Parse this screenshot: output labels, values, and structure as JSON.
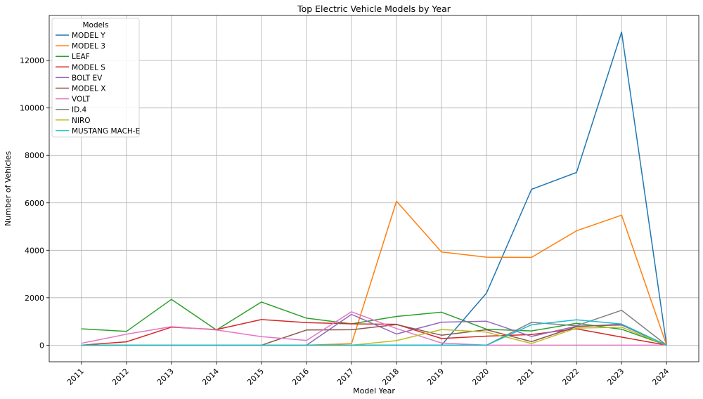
{
  "chart_data": {
    "type": "line",
    "title": "Top Electric Vehicle Models by Year",
    "xlabel": "Model Year",
    "ylabel": "Number of Vehicles",
    "x": [
      2011,
      2012,
      2013,
      2014,
      2015,
      2016,
      2017,
      2018,
      2019,
      2020,
      2021,
      2022,
      2023,
      2024
    ],
    "ylim": [
      -700,
      13900
    ],
    "yticks": [
      0,
      2000,
      4000,
      6000,
      8000,
      10000,
      12000
    ],
    "grid": true,
    "legend_title": "Models",
    "legend_position": "top-left",
    "series": [
      {
        "name": "MODEL Y",
        "color": "#1f77b4",
        "values": [
          0,
          0,
          0,
          0,
          0,
          0,
          0,
          0,
          0,
          2200,
          6570,
          7280,
          13200,
          0
        ]
      },
      {
        "name": "MODEL 3",
        "color": "#ff7f0e",
        "values": [
          0,
          0,
          0,
          0,
          0,
          0,
          60,
          6070,
          3930,
          3710,
          3700,
          4820,
          5480,
          0
        ]
      },
      {
        "name": "LEAF",
        "color": "#2ca02c",
        "values": [
          690,
          580,
          1930,
          640,
          1820,
          1140,
          900,
          1210,
          1390,
          670,
          600,
          920,
          670,
          0
        ]
      },
      {
        "name": "MODEL S",
        "color": "#d62728",
        "values": [
          0,
          140,
          760,
          660,
          1080,
          950,
          900,
          880,
          280,
          380,
          450,
          690,
          340,
          0
        ]
      },
      {
        "name": "BOLT EV",
        "color": "#9467bd",
        "values": [
          0,
          0,
          0,
          0,
          0,
          0,
          1300,
          470,
          970,
          1010,
          370,
          800,
          850,
          0
        ]
      },
      {
        "name": "MODEL X",
        "color": "#8c564b",
        "values": [
          0,
          0,
          0,
          0,
          0,
          640,
          650,
          870,
          420,
          650,
          150,
          780,
          880,
          0
        ]
      },
      {
        "name": "VOLT",
        "color": "#e377c2",
        "values": [
          80,
          460,
          780,
          640,
          360,
          200,
          1410,
          700,
          90,
          0,
          0,
          0,
          0,
          0
        ]
      },
      {
        "name": "ID.4",
        "color": "#7f7f7f",
        "values": [
          0,
          0,
          0,
          0,
          0,
          0,
          0,
          0,
          0,
          0,
          960,
          820,
          1470,
          0
        ]
      },
      {
        "name": "NIRO",
        "color": "#bcbd22",
        "values": [
          0,
          0,
          0,
          0,
          0,
          0,
          0,
          190,
          660,
          550,
          70,
          720,
          760,
          0
        ]
      },
      {
        "name": "MUSTANG MACH-E",
        "color": "#17becf",
        "values": [
          0,
          0,
          0,
          0,
          0,
          0,
          0,
          0,
          0,
          0,
          860,
          1070,
          890,
          0
        ]
      }
    ]
  }
}
